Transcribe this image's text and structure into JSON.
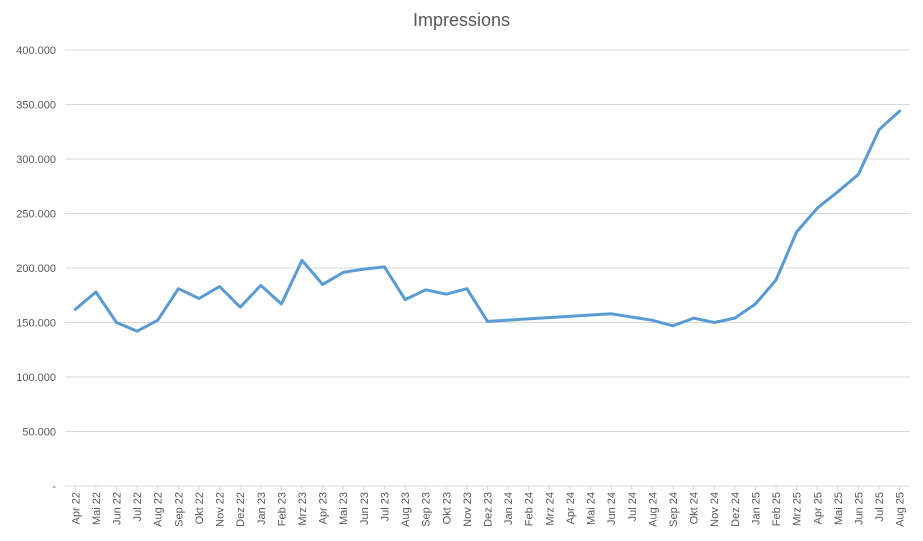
{
  "chart_data": {
    "type": "line",
    "title": "Impressions",
    "xlabel": "",
    "ylabel": "",
    "ylim": [
      0,
      400000
    ],
    "yticks": [
      {
        "value": 0,
        "label": "-"
      },
      {
        "value": 50000,
        "label": "50.000"
      },
      {
        "value": 100000,
        "label": "100.000"
      },
      {
        "value": 150000,
        "label": "150.000"
      },
      {
        "value": 200000,
        "label": "200.000"
      },
      {
        "value": 250000,
        "label": "250.000"
      },
      {
        "value": 300000,
        "label": "300.000"
      },
      {
        "value": 350000,
        "label": "350.000"
      },
      {
        "value": 400000,
        "label": "400.000"
      }
    ],
    "grid": true,
    "line_color": "#5b9bd5",
    "categories": [
      "Apr 22",
      "Mai 22",
      "Jun 22",
      "Jul 22",
      "Aug 22",
      "Sep 22",
      "Okt 22",
      "Nov 22",
      "Dez 22",
      "Jan 23",
      "Feb 23",
      "Mrz 23",
      "Apr 23",
      "Mai 23",
      "Jun 23",
      "Jul 23",
      "Aug 23",
      "Sep 23",
      "Okt 23",
      "Nov 23",
      "Dez 23",
      "Jan 24",
      "Feb 24",
      "Mrz 24",
      "Apr 24",
      "Mai 24",
      "Jun 24",
      "Jul 24",
      "Aug 24",
      "Sep 24",
      "Okt 24",
      "Nov 24",
      "Dez 24",
      "Jan 25",
      "Feb 25",
      "Mrz 25",
      "Apr 25",
      "Mai 25",
      "Jun 25",
      "Jul 25",
      "Aug 25"
    ],
    "series": [
      {
        "values": [
          162000,
          178000,
          150000,
          142000,
          152000,
          181000,
          172000,
          183000,
          164000,
          184000,
          167000,
          207000,
          185000,
          196000,
          199000,
          201000,
          171000,
          180000,
          176000,
          181000,
          151000,
          null,
          null,
          null,
          null,
          null,
          158000,
          null,
          152000,
          147000,
          154000,
          150000,
          154000,
          167000,
          189000,
          233000,
          255000,
          270000,
          286000,
          327000,
          344000
        ]
      }
    ]
  }
}
